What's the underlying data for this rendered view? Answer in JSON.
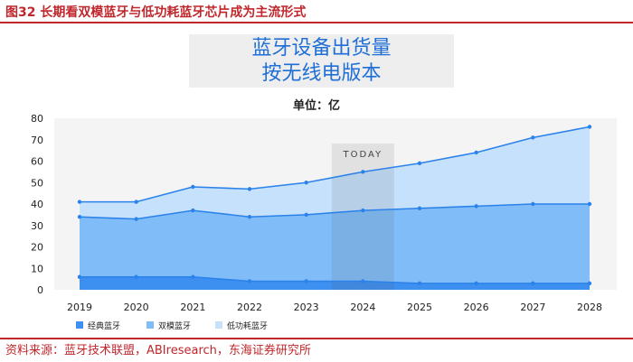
{
  "figure": {
    "title": "图32 长期看双模蓝牙与低功耗蓝牙芯片成为主流形式",
    "source": "资料来源：蓝牙技术联盟，ABIresearch，东海证券研究所"
  },
  "chart_data": {
    "type": "area",
    "title_lines": [
      "蓝牙设备出货量",
      "按无线电版本"
    ],
    "unit_label": "单位：亿",
    "x": [
      "2019",
      "2020",
      "2021",
      "2022",
      "2023",
      "2024",
      "2025",
      "2026",
      "2027",
      "2028"
    ],
    "ylim": [
      0,
      80
    ],
    "yticks": [
      0,
      10,
      20,
      30,
      40,
      50,
      60,
      70,
      80
    ],
    "grid": false,
    "stacked_cumulative": true,
    "series": [
      {
        "name": "经典蓝牙",
        "values": [
          6,
          6,
          6,
          4,
          4,
          4,
          3,
          3,
          3,
          3
        ],
        "color": "#3d8ff0"
      },
      {
        "name": "双模蓝牙",
        "values": [
          34,
          33,
          37,
          34,
          35,
          37,
          38,
          39,
          40,
          40
        ],
        "color": "#80bcf7"
      },
      {
        "name": "低功耗蓝牙",
        "values": [
          41,
          41,
          48,
          47,
          50,
          55,
          59,
          64,
          71,
          76
        ],
        "color": "#c5e1fb"
      }
    ],
    "line_color": "#2b82ea",
    "highlight": {
      "label": "TODAY",
      "x": "2024"
    },
    "legend_position": "bottom-left"
  }
}
